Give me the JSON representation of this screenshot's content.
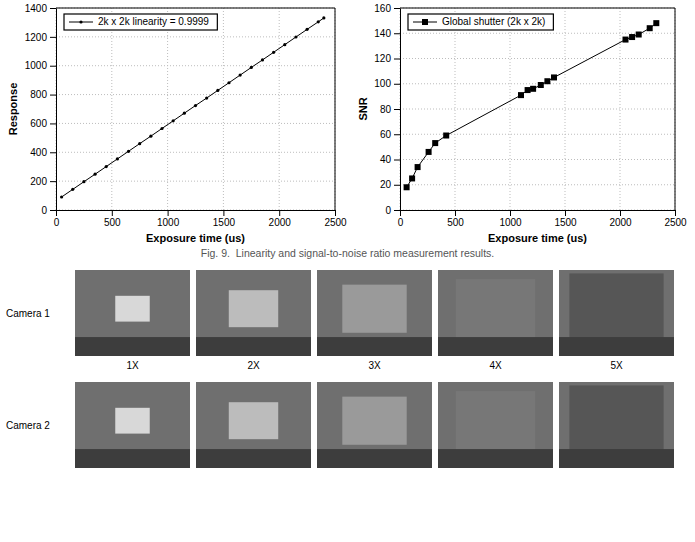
{
  "chart_data": [
    {
      "type": "line",
      "x": [
        50,
        150,
        250,
        350,
        450,
        550,
        650,
        750,
        850,
        950,
        1050,
        1150,
        1250,
        1350,
        1450,
        1550,
        1650,
        1750,
        1850,
        1950,
        2050,
        2150,
        2250,
        2350,
        2400
      ],
      "series": [
        {
          "name": "2k x 2k linearity = 0.9999",
          "color": "#000000",
          "marker": "dot",
          "values": [
            90,
            143,
            196,
            248,
            301,
            354,
            407,
            460,
            512,
            565,
            618,
            671,
            724,
            776,
            829,
            882,
            935,
            988,
            1040,
            1093,
            1146,
            1199,
            1252,
            1304,
            1331
          ]
        }
      ],
      "xlabel": "Exposure time (us)",
      "ylabel": "Response",
      "xlim": [
        0,
        2500
      ],
      "xticks": [
        0,
        500,
        1000,
        1500,
        2000,
        2500
      ],
      "ylim": [
        0,
        1400
      ],
      "yticks": [
        0,
        200,
        400,
        600,
        800,
        1000,
        1200,
        1400
      ],
      "grid": true,
      "legend": "upper left"
    },
    {
      "type": "line",
      "x": [
        60,
        110,
        160,
        260,
        320,
        420,
        1100,
        1160,
        1210,
        1280,
        1340,
        1400,
        2050,
        2110,
        2170,
        2270,
        2330
      ],
      "series": [
        {
          "name": "Global shutter (2k x 2k)",
          "color": "#000000",
          "marker": "square",
          "values": [
            18,
            25,
            34,
            46,
            53,
            59,
            91,
            95,
            96,
            99,
            102,
            105,
            135,
            137,
            139,
            144,
            148
          ]
        }
      ],
      "xlabel": "Exposure time (us)",
      "ylabel": "SNR",
      "xlim": [
        0,
        2500
      ],
      "xticks": [
        0,
        500,
        1000,
        1500,
        2000,
        2500
      ],
      "ylim": [
        0,
        160
      ],
      "yticks": [
        0,
        20,
        40,
        60,
        80,
        100,
        120,
        140,
        160
      ],
      "grid": true,
      "legend": "upper left"
    }
  ],
  "caption": "Fig. 9.  Linearity and signal-to-noise ratio measurement results.",
  "photos": {
    "rows": [
      "Camera 1",
      "Camera 2"
    ],
    "columns": [
      "1X",
      "2X",
      "3X",
      "4X",
      "5X"
    ]
  }
}
